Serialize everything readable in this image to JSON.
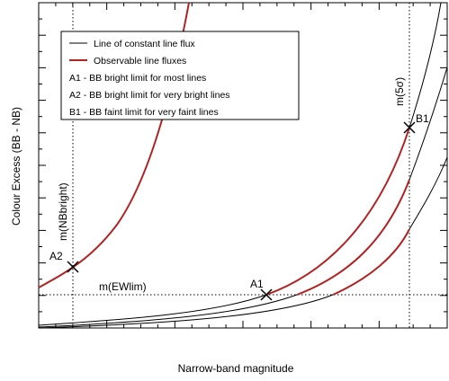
{
  "x_label": "Narrow-band magnitude",
  "y_label": "Colour Excess (BB - NB)",
  "legend": [
    "Line of constant line flux",
    "Observable line fluxes",
    "A1 - BB bright limit for most lines",
    "A2 - BB bright limit for very bright lines",
    "B1 - BB faint limit for very faint lines"
  ],
  "annotations": {
    "a2": "A2",
    "a1": "A1",
    "b1": "B1",
    "ewlim": "m(EWlim)",
    "nbbright": "m(NBbright)",
    "five_sigma": "m(5σ)"
  }
}
